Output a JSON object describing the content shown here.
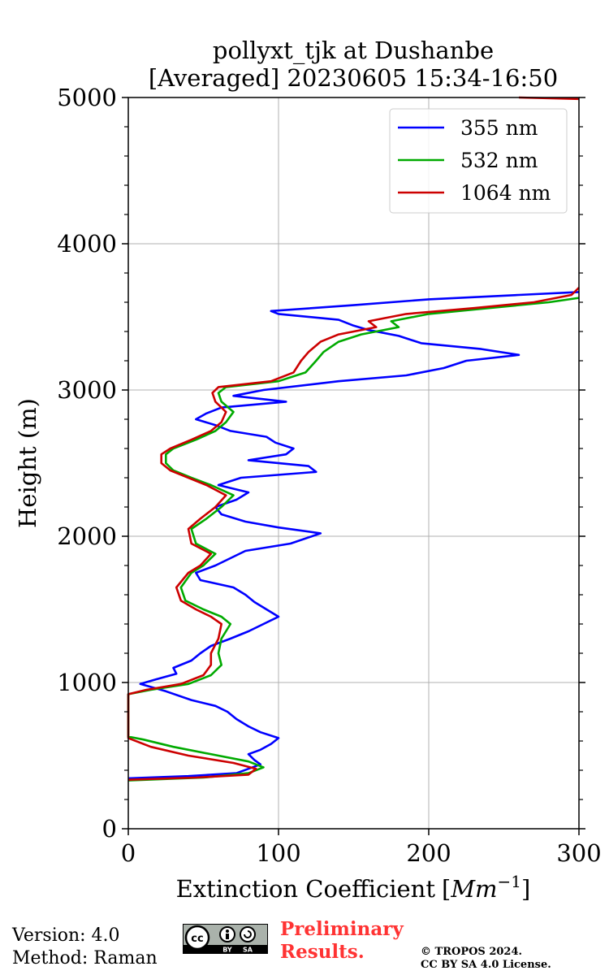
{
  "chart_data": {
    "type": "line",
    "title": "pollyxt_tjk at Dushanbe",
    "subtitle": "[Averaged] 20230605 15:34-16:50",
    "xlabel": "Extinction Coefficient",
    "xlabel_unit_base": "Mm",
    "xlabel_unit_exp": "−1",
    "ylabel": "Height (m)",
    "xlim": [
      0,
      300
    ],
    "ylim": [
      0,
      5000
    ],
    "xticks": [
      0,
      100,
      200,
      300
    ],
    "yticks": [
      0,
      1000,
      2000,
      3000,
      4000,
      5000
    ],
    "grid": true,
    "legend_position": "top-right",
    "series": [
      {
        "name": "355 nm",
        "color": "#0000ff",
        "points": [
          [
            0,
            345
          ],
          [
            40,
            360
          ],
          [
            72,
            380
          ],
          [
            80,
            410
          ],
          [
            88,
            440
          ],
          [
            84,
            470
          ],
          [
            80,
            510
          ],
          [
            88,
            540
          ],
          [
            95,
            580
          ],
          [
            100,
            620
          ],
          [
            88,
            660
          ],
          [
            80,
            700
          ],
          [
            72,
            750
          ],
          [
            66,
            800
          ],
          [
            58,
            840
          ],
          [
            42,
            880
          ],
          [
            25,
            940
          ],
          [
            8,
            990
          ],
          [
            18,
            1020
          ],
          [
            32,
            1060
          ],
          [
            30,
            1100
          ],
          [
            42,
            1150
          ],
          [
            48,
            1200
          ],
          [
            55,
            1250
          ],
          [
            68,
            1300
          ],
          [
            80,
            1350
          ],
          [
            90,
            1400
          ],
          [
            100,
            1450
          ],
          [
            92,
            1500
          ],
          [
            84,
            1550
          ],
          [
            78,
            1600
          ],
          [
            70,
            1650
          ],
          [
            48,
            1700
          ],
          [
            45,
            1750
          ],
          [
            58,
            1800
          ],
          [
            68,
            1850
          ],
          [
            78,
            1900
          ],
          [
            108,
            1950
          ],
          [
            128,
            2020
          ],
          [
            100,
            2060
          ],
          [
            78,
            2100
          ],
          [
            62,
            2150
          ],
          [
            58,
            2200
          ],
          [
            72,
            2250
          ],
          [
            80,
            2300
          ],
          [
            60,
            2350
          ],
          [
            75,
            2400
          ],
          [
            125,
            2440
          ],
          [
            120,
            2480
          ],
          [
            80,
            2520
          ],
          [
            105,
            2560
          ],
          [
            110,
            2600
          ],
          [
            98,
            2640
          ],
          [
            92,
            2680
          ],
          [
            68,
            2720
          ],
          [
            58,
            2760
          ],
          [
            45,
            2800
          ],
          [
            52,
            2840
          ],
          [
            62,
            2880
          ],
          [
            105,
            2920
          ],
          [
            70,
            2960
          ],
          [
            90,
            3000
          ],
          [
            140,
            3060
          ],
          [
            185,
            3100
          ],
          [
            210,
            3150
          ],
          [
            225,
            3200
          ],
          [
            260,
            3240
          ],
          [
            235,
            3280
          ],
          [
            195,
            3320
          ],
          [
            180,
            3370
          ],
          [
            160,
            3410
          ],
          [
            150,
            3440
          ],
          [
            140,
            3480
          ],
          [
            100,
            3520
          ],
          [
            95,
            3540
          ],
          [
            150,
            3580
          ],
          [
            200,
            3620
          ],
          [
            260,
            3650
          ],
          [
            300,
            3670
          ]
        ]
      },
      {
        "name": "532 nm",
        "color": "#00aa00",
        "points": [
          [
            0,
            330
          ],
          [
            50,
            350
          ],
          [
            80,
            380
          ],
          [
            90,
            420
          ],
          [
            80,
            460
          ],
          [
            60,
            500
          ],
          [
            30,
            560
          ],
          [
            10,
            610
          ],
          [
            0,
            630
          ],
          [
            0,
            920
          ],
          [
            15,
            950
          ],
          [
            40,
            990
          ],
          [
            55,
            1050
          ],
          [
            62,
            1120
          ],
          [
            60,
            1200
          ],
          [
            62,
            1300
          ],
          [
            68,
            1400
          ],
          [
            62,
            1450
          ],
          [
            50,
            1500
          ],
          [
            38,
            1560
          ],
          [
            35,
            1650
          ],
          [
            42,
            1750
          ],
          [
            50,
            1800
          ],
          [
            58,
            1880
          ],
          [
            45,
            1950
          ],
          [
            42,
            2050
          ],
          [
            52,
            2120
          ],
          [
            62,
            2200
          ],
          [
            70,
            2280
          ],
          [
            55,
            2350
          ],
          [
            42,
            2400
          ],
          [
            30,
            2450
          ],
          [
            25,
            2500
          ],
          [
            25,
            2560
          ],
          [
            30,
            2600
          ],
          [
            45,
            2660
          ],
          [
            58,
            2720
          ],
          [
            65,
            2780
          ],
          [
            70,
            2850
          ],
          [
            62,
            2920
          ],
          [
            60,
            2980
          ],
          [
            65,
            3020
          ],
          [
            100,
            3060
          ],
          [
            118,
            3120
          ],
          [
            125,
            3200
          ],
          [
            130,
            3260
          ],
          [
            140,
            3330
          ],
          [
            155,
            3380
          ],
          [
            180,
            3430
          ],
          [
            175,
            3470
          ],
          [
            200,
            3520
          ],
          [
            240,
            3560
          ],
          [
            280,
            3600
          ],
          [
            300,
            3630
          ]
        ]
      },
      {
        "name": "1064 nm",
        "color": "#cc0000",
        "points": [
          [
            0,
            335
          ],
          [
            45,
            350
          ],
          [
            80,
            370
          ],
          [
            85,
            410
          ],
          [
            70,
            450
          ],
          [
            40,
            500
          ],
          [
            15,
            560
          ],
          [
            0,
            620
          ],
          [
            0,
            920
          ],
          [
            12,
            950
          ],
          [
            35,
            990
          ],
          [
            50,
            1050
          ],
          [
            55,
            1120
          ],
          [
            55,
            1200
          ],
          [
            60,
            1300
          ],
          [
            62,
            1400
          ],
          [
            55,
            1450
          ],
          [
            45,
            1500
          ],
          [
            35,
            1560
          ],
          [
            32,
            1650
          ],
          [
            40,
            1750
          ],
          [
            48,
            1800
          ],
          [
            55,
            1880
          ],
          [
            42,
            1950
          ],
          [
            40,
            2050
          ],
          [
            48,
            2120
          ],
          [
            58,
            2200
          ],
          [
            65,
            2280
          ],
          [
            52,
            2350
          ],
          [
            40,
            2400
          ],
          [
            28,
            2450
          ],
          [
            22,
            2500
          ],
          [
            22,
            2560
          ],
          [
            28,
            2600
          ],
          [
            42,
            2660
          ],
          [
            55,
            2720
          ],
          [
            62,
            2780
          ],
          [
            65,
            2850
          ],
          [
            58,
            2920
          ],
          [
            56,
            2980
          ],
          [
            60,
            3020
          ],
          [
            95,
            3060
          ],
          [
            110,
            3120
          ],
          [
            115,
            3200
          ],
          [
            120,
            3260
          ],
          [
            128,
            3330
          ],
          [
            140,
            3380
          ],
          [
            165,
            3430
          ],
          [
            160,
            3470
          ],
          [
            185,
            3520
          ],
          [
            230,
            3560
          ],
          [
            270,
            3600
          ],
          [
            295,
            3650
          ],
          [
            300,
            3700
          ]
        ]
      },
      {
        "name": "",
        "color": "#cc0000",
        "points": [
          [
            260,
            5000
          ],
          [
            300,
            4990
          ]
        ]
      }
    ]
  },
  "footer": {
    "version": "Version: 4.0",
    "method": "Method: Raman",
    "preliminary_line1": "Preliminary",
    "preliminary_line2": "Results.",
    "copyright_line1": "© TROPOS 2024.",
    "copyright_line2": "CC BY SA 4.0 License.",
    "license_badge": {
      "cc": "cc",
      "by": "BY",
      "sa": "SA",
      "icon": "creative-commons-icon"
    }
  }
}
